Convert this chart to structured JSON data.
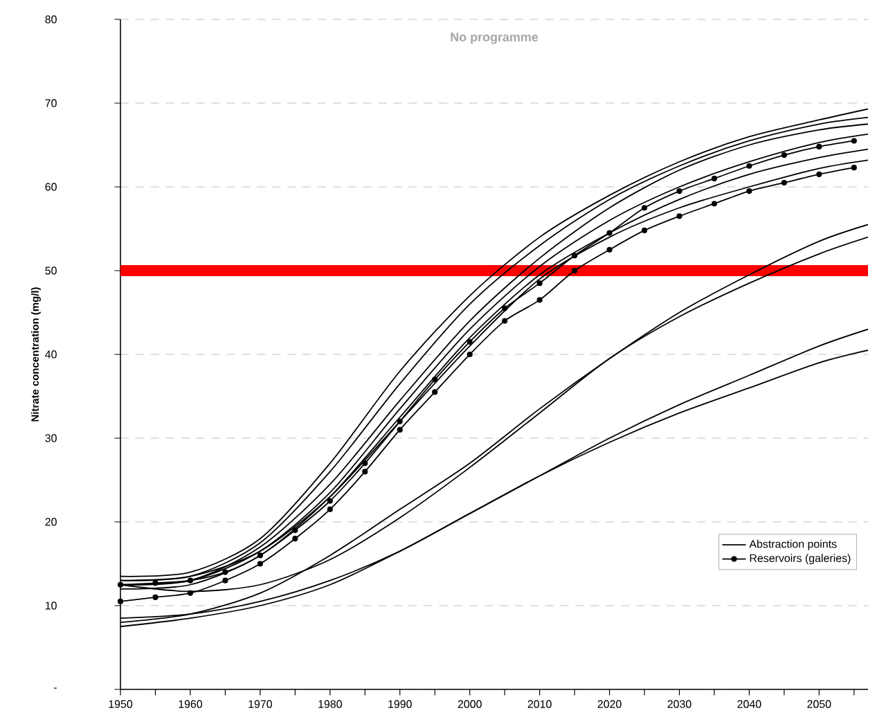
{
  "chart_data": {
    "type": "line",
    "title": "No programme",
    "ylabel": "Nitrate concentration (mg/l)",
    "x": [
      1950,
      1960,
      1970,
      1980,
      1990,
      2000,
      2010,
      2020,
      2030,
      2040,
      2050,
      2057
    ],
    "series": [
      {
        "name": "Abstraction points",
        "color": "#000000",
        "values": [
          13.5,
          14,
          18,
          27,
          38,
          47,
          54,
          59,
          63,
          66,
          68,
          69.3
        ]
      },
      {
        "color": "#000000",
        "values": [
          13,
          13.5,
          17.5,
          26,
          36.5,
          46,
          53,
          58.5,
          62.5,
          65.5,
          67.5,
          68.3
        ]
      },
      {
        "color": "#000000",
        "values": [
          12.5,
          13,
          17,
          24.5,
          34.5,
          44,
          51.5,
          57.5,
          62,
          65,
          66.8,
          67.5
        ]
      },
      {
        "color": "#000000",
        "values": [
          12.5,
          13,
          16.5,
          23.5,
          33.5,
          43,
          50.5,
          56,
          60,
          63,
          65.3,
          66.3
        ]
      },
      {
        "color": "#000000",
        "values": [
          12,
          12.5,
          16,
          23,
          32.5,
          42,
          49.5,
          54.5,
          58.5,
          61.5,
          63.5,
          64.5
        ]
      },
      {
        "color": "#000000",
        "values": [
          13,
          13.5,
          16.5,
          23,
          32,
          41,
          49,
          54,
          57.5,
          60,
          62.2,
          63.2
        ]
      },
      {
        "color": "#000000",
        "values": [
          8,
          9,
          11.5,
          16,
          21.5,
          27,
          33.5,
          39.5,
          45,
          49.5,
          53.5,
          55.5
        ]
      },
      {
        "color": "#000000",
        "values": [
          12.5,
          11.7,
          12.5,
          15.5,
          20.5,
          26.5,
          33,
          39.5,
          44.5,
          48.5,
          52,
          54
        ]
      },
      {
        "color": "#000000",
        "values": [
          8.5,
          9,
          10.5,
          13,
          16.5,
          21,
          25.5,
          30,
          34,
          37.5,
          41,
          43
        ]
      },
      {
        "color": "#000000",
        "values": [
          7.5,
          8.5,
          10,
          12.5,
          16.5,
          21,
          25.5,
          29.5,
          33,
          36,
          39,
          40.5
        ]
      },
      {
        "name": "Reservoirs (galeries)",
        "color": "#000000",
        "marker": "circle",
        "x": [
          1950,
          1955,
          1960,
          1965,
          1970,
          1975,
          1980,
          1985,
          1990,
          1995,
          2000,
          2005,
          2010,
          2015,
          2020,
          2025,
          2030,
          2035,
          2040,
          2045,
          2050,
          2055
        ],
        "values": [
          12.5,
          12.7,
          13,
          14,
          16,
          19,
          22.5,
          27,
          32,
          37,
          41.5,
          45.5,
          48.5,
          51.8,
          54.5,
          57.5,
          59.5,
          61,
          62.5,
          63.8,
          64.8,
          65.5
        ]
      },
      {
        "color": "#000000",
        "marker": "circle",
        "x": [
          1950,
          1955,
          1960,
          1965,
          1970,
          1975,
          1980,
          1985,
          1990,
          1995,
          2000,
          2005,
          2010,
          2015,
          2020,
          2025,
          2030,
          2035,
          2040,
          2045,
          2050,
          2055
        ],
        "values": [
          10.5,
          11,
          11.5,
          13,
          15,
          18,
          21.5,
          26,
          31,
          35.5,
          40,
          44,
          46.5,
          50,
          52.5,
          54.8,
          56.5,
          58,
          59.5,
          60.5,
          61.5,
          62.3
        ]
      }
    ],
    "xlim": [
      1950,
      2057
    ],
    "ylim": [
      0,
      80
    ],
    "xticks": [
      1950,
      {
        "value": 1955,
        "label": null
      },
      1960,
      {
        "value": 1965,
        "label": null
      },
      1970,
      {
        "value": 1975,
        "label": null
      },
      1980,
      {
        "value": 1985,
        "label": null
      },
      1990,
      {
        "value": 1995,
        "label": null
      },
      2000,
      {
        "value": 2005,
        "label": null
      },
      2010,
      {
        "value": 2015,
        "label": null
      },
      2020,
      {
        "value": 2025,
        "label": null
      },
      2030,
      {
        "value": 2035,
        "label": null
      },
      2040,
      {
        "value": 2045,
        "label": null
      },
      2050,
      {
        "value": 2055,
        "label": null
      }
    ],
    "yticks": [
      {
        "value": 0,
        "label": "-"
      },
      10,
      20,
      30,
      40,
      50,
      60,
      70,
      80
    ],
    "ref_lines": [
      {
        "axis": "y",
        "value": 50,
        "color": "#ff0000"
      }
    ],
    "grid": "y",
    "legend": "bottom right"
  }
}
